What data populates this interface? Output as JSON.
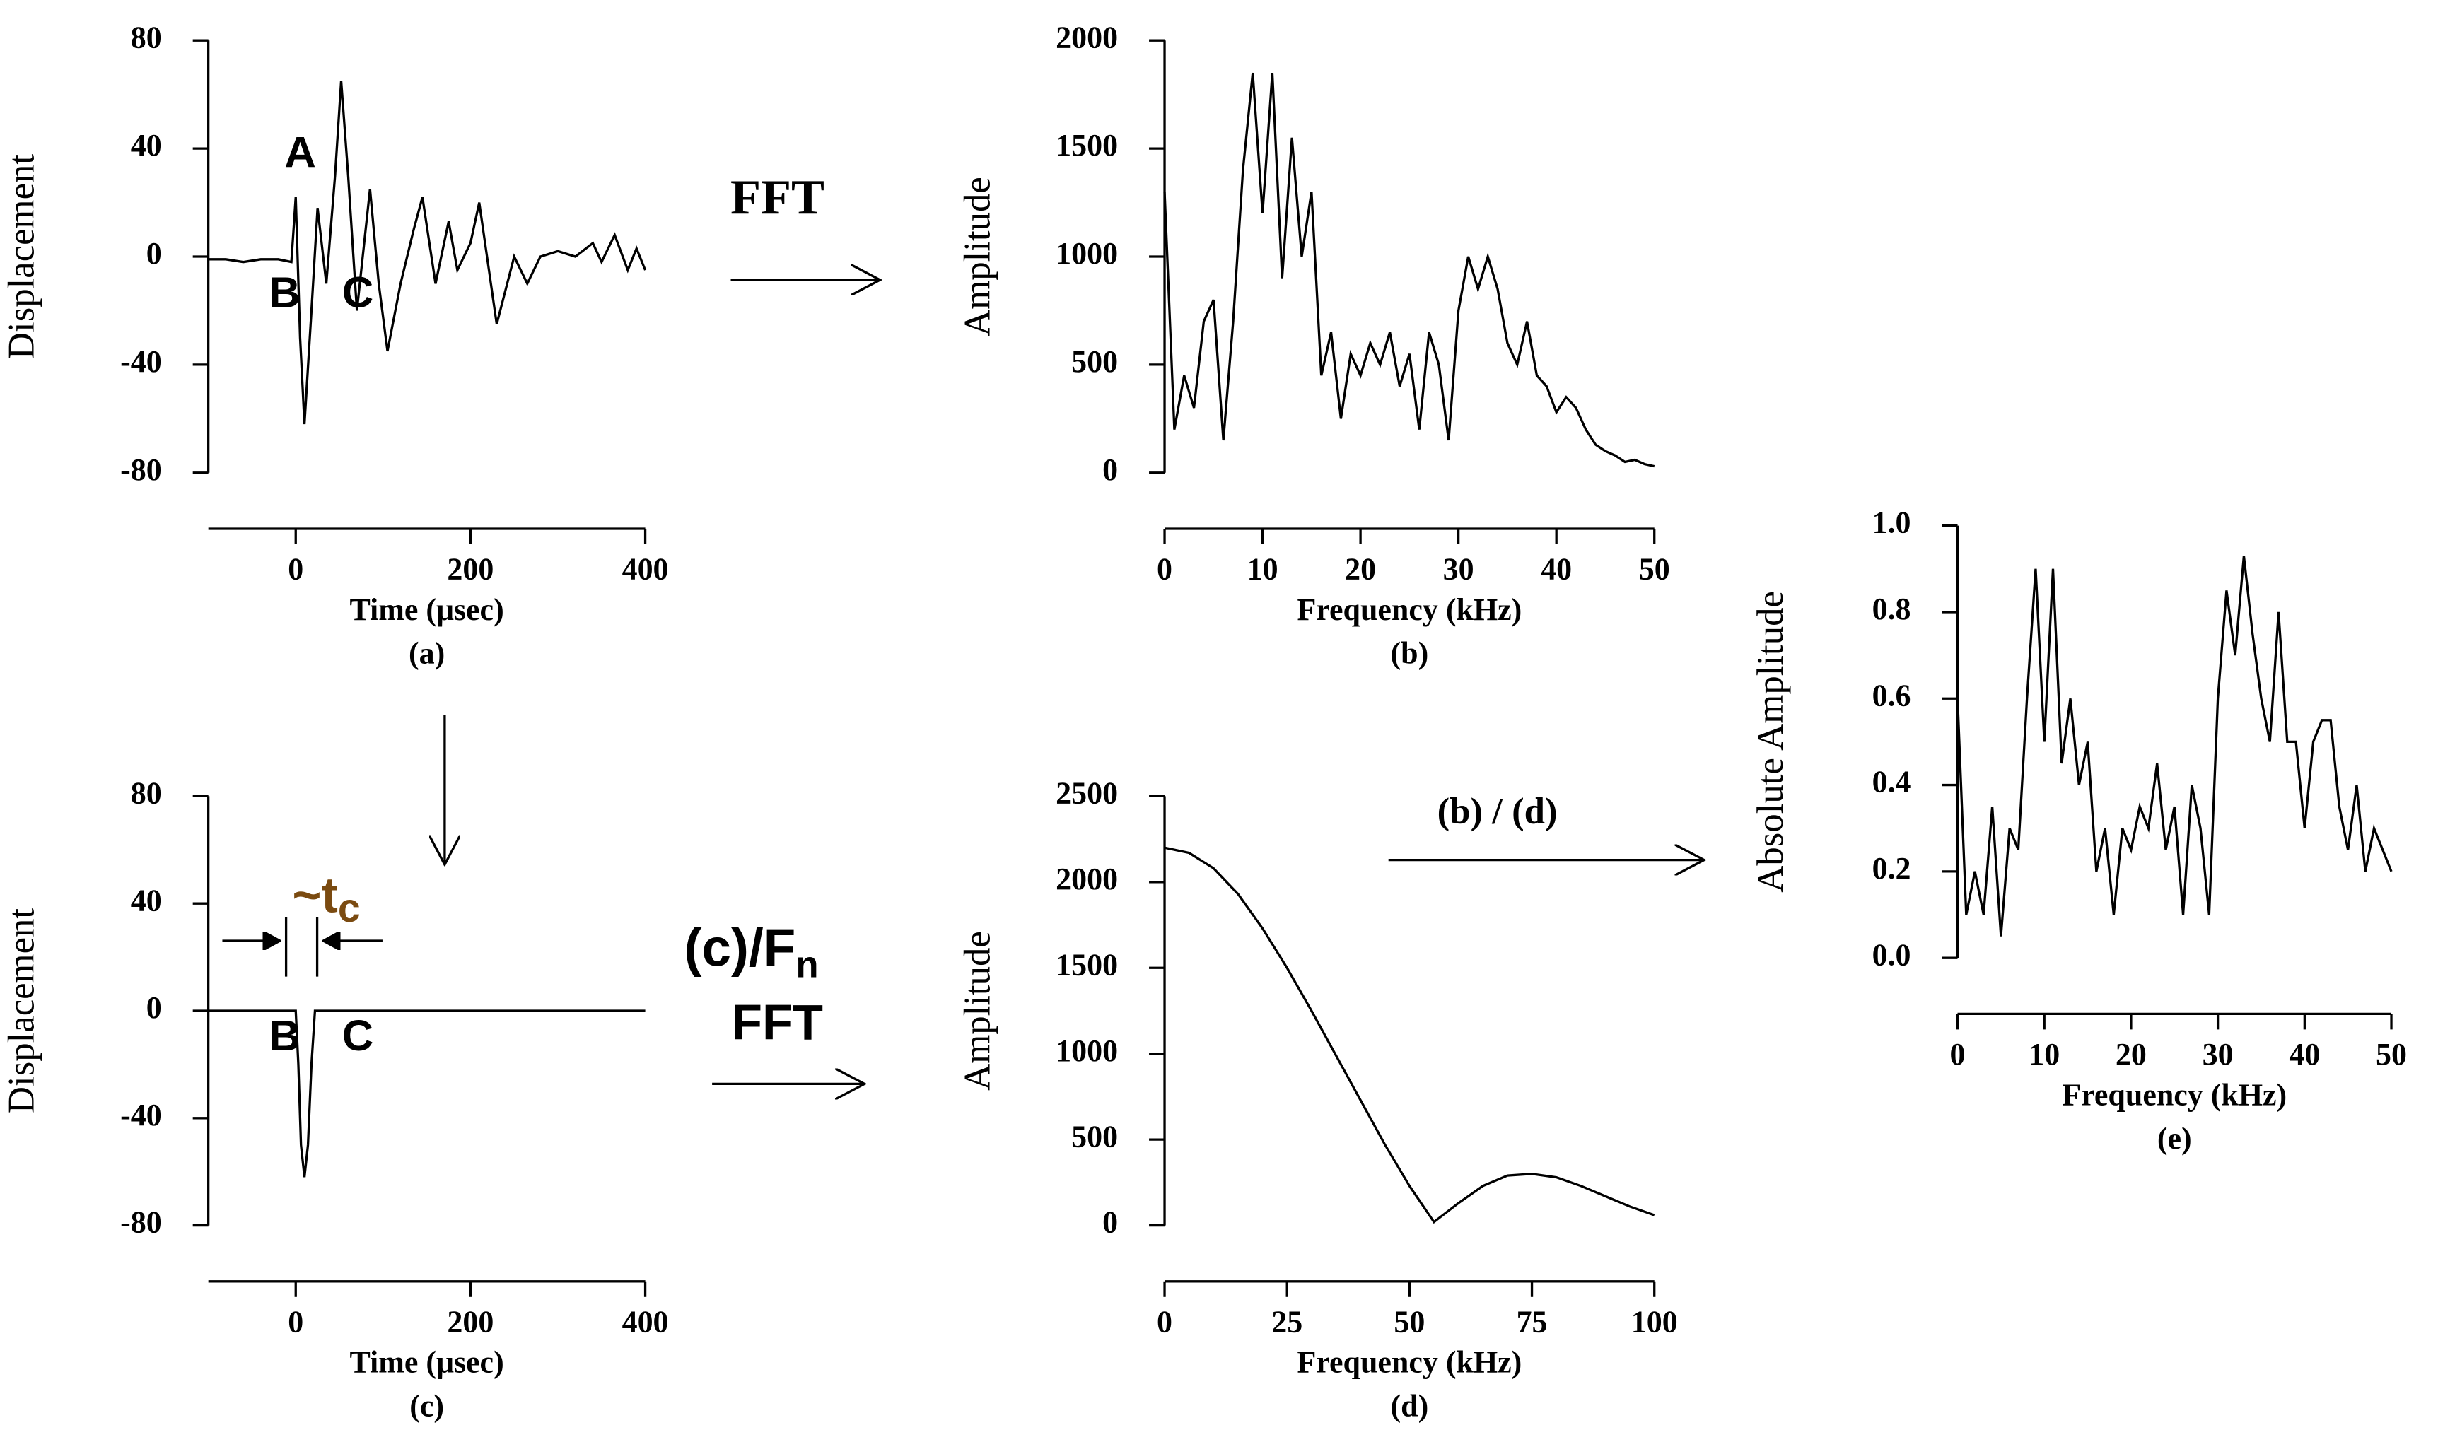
{
  "chart_data": [
    {
      "type": "line",
      "caption": "(a)",
      "x_label": "Time (μsec)",
      "y_label": "Displacement",
      "color": "#000000",
      "annotations": [
        "A",
        "B",
        "C"
      ],
      "x": [
        -100,
        -80,
        -60,
        -40,
        -20,
        -5,
        0,
        5,
        10,
        18,
        25,
        35,
        45,
        52,
        60,
        70,
        85,
        95,
        105,
        120,
        135,
        145,
        160,
        175,
        185,
        200,
        210,
        230,
        250,
        265,
        280,
        300,
        320,
        340,
        350,
        365,
        380,
        390,
        400
      ],
      "values": [
        -1,
        -1,
        -2,
        -1,
        -1,
        -2,
        22,
        -30,
        -62,
        -20,
        18,
        -10,
        30,
        65,
        30,
        -20,
        25,
        -10,
        -35,
        -10,
        10,
        22,
        -10,
        13,
        -5,
        5,
        20,
        -25,
        0,
        -10,
        0,
        2,
        0,
        5,
        -2,
        8,
        -5,
        3,
        -5
      ],
      "xlim": [
        -100,
        400
      ],
      "ylim": [
        -80,
        80
      ],
      "xticks": [
        0,
        200,
        400
      ],
      "yticks": [
        -80,
        -40,
        0,
        40,
        80
      ]
    },
    {
      "type": "line",
      "caption": "(b)",
      "x_label": "Frequency (kHz)",
      "y_label": "Amplitude",
      "color": "#000000",
      "x": [
        0,
        1,
        2,
        3,
        4,
        5,
        6,
        7,
        8,
        9,
        10,
        11,
        12,
        13,
        14,
        15,
        16,
        17,
        18,
        19,
        20,
        21,
        22,
        23,
        24,
        25,
        26,
        27,
        28,
        29,
        30,
        31,
        32,
        33,
        34,
        35,
        36,
        37,
        38,
        39,
        40,
        41,
        42,
        43,
        44,
        45,
        46,
        47,
        48,
        49,
        50
      ],
      "values": [
        1300,
        200,
        450,
        300,
        700,
        800,
        150,
        700,
        1400,
        1850,
        1200,
        1850,
        900,
        1550,
        1000,
        1300,
        450,
        650,
        250,
        550,
        450,
        600,
        500,
        650,
        400,
        550,
        200,
        650,
        500,
        150,
        750,
        1000,
        850,
        1000,
        850,
        600,
        500,
        700,
        450,
        400,
        280,
        350,
        300,
        200,
        130,
        100,
        80,
        50,
        60,
        40,
        30
      ],
      "xlim": [
        0,
        50
      ],
      "ylim": [
        0,
        2000
      ],
      "xticks": [
        0,
        10,
        20,
        30,
        40,
        50
      ],
      "yticks": [
        0,
        500,
        1000,
        1500,
        2000
      ]
    },
    {
      "type": "line",
      "caption": "(c)",
      "x_label": "Time (μsec)",
      "y_label": "Displacement",
      "color": "#000000",
      "annotations": [
        "B",
        "C"
      ],
      "interval_label": {
        "text": "~t",
        "sub": "c"
      },
      "x": [
        -100,
        0,
        3,
        6,
        10,
        14,
        18,
        22,
        400
      ],
      "values": [
        0,
        0,
        -20,
        -50,
        -62,
        -50,
        -20,
        0,
        0
      ],
      "xlim": [
        -100,
        400
      ],
      "ylim": [
        -80,
        80
      ],
      "xticks": [
        0,
        200,
        400
      ],
      "yticks": [
        -80,
        -40,
        0,
        40,
        80
      ]
    },
    {
      "type": "line",
      "caption": "(d)",
      "x_label": "Frequency (kHz)",
      "y_label": "Amplitude",
      "color": "#000000",
      "x": [
        0,
        5,
        10,
        15,
        20,
        25,
        30,
        35,
        40,
        45,
        50,
        55,
        60,
        65,
        70,
        75,
        80,
        85,
        90,
        95,
        100
      ],
      "values": [
        2200,
        2170,
        2080,
        1930,
        1730,
        1500,
        1250,
        990,
        730,
        470,
        230,
        20,
        130,
        230,
        290,
        300,
        280,
        230,
        170,
        110,
        60
      ],
      "xlim": [
        0,
        100
      ],
      "ylim": [
        0,
        2500
      ],
      "xticks": [
        0,
        25,
        50,
        75,
        100
      ],
      "yticks": [
        0,
        500,
        1000,
        1500,
        2000,
        2500
      ]
    },
    {
      "type": "line",
      "caption": "(e)",
      "x_label": "Frequency (kHz)",
      "y_label": "Absolute  Amplitude",
      "color": "#000000",
      "x": [
        0,
        1,
        2,
        3,
        4,
        5,
        6,
        7,
        8,
        9,
        10,
        11,
        12,
        13,
        14,
        15,
        16,
        17,
        18,
        19,
        20,
        21,
        22,
        23,
        24,
        25,
        26,
        27,
        28,
        29,
        30,
        31,
        32,
        33,
        34,
        35,
        36,
        37,
        38,
        39,
        40,
        41,
        42,
        43,
        44,
        45,
        46,
        47,
        48,
        49,
        50
      ],
      "values": [
        0.6,
        0.1,
        0.2,
        0.1,
        0.35,
        0.05,
        0.3,
        0.25,
        0.6,
        0.9,
        0.5,
        0.9,
        0.45,
        0.6,
        0.4,
        0.5,
        0.2,
        0.3,
        0.1,
        0.3,
        0.25,
        0.35,
        0.3,
        0.45,
        0.25,
        0.35,
        0.1,
        0.4,
        0.3,
        0.1,
        0.6,
        0.85,
        0.7,
        0.93,
        0.75,
        0.6,
        0.5,
        0.8,
        0.5,
        0.5,
        0.3,
        0.5,
        0.55,
        0.55,
        0.35,
        0.25,
        0.4,
        0.2,
        0.3,
        0.25,
        0.2
      ],
      "xlim": [
        0,
        50
      ],
      "ylim": [
        0,
        1
      ],
      "xticks": [
        0,
        10,
        20,
        30,
        40,
        50
      ],
      "yticks": [
        {
          "value": 0,
          "label": "0.0"
        },
        {
          "value": 0.2,
          "label": "0.2"
        },
        {
          "value": 0.4,
          "label": "0.4"
        },
        {
          "value": 0.6,
          "label": "0.6"
        },
        {
          "value": 0.8,
          "label": "0.8"
        },
        {
          "value": 1,
          "label": "1.0"
        }
      ]
    }
  ],
  "arrows": [
    {
      "label": "FFT"
    },
    {
      "label": "(c)/F",
      "sub": "n"
    },
    {
      "label": "FFT"
    },
    {
      "label": "(b) / (d)"
    }
  ]
}
